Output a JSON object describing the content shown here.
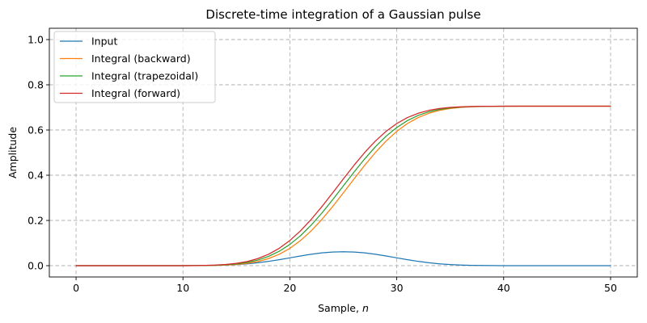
{
  "chart_data": {
    "type": "line",
    "title": "Discrete-time integration of a Gaussian pulse",
    "xlabel_prefix": "Sample, ",
    "xlabel_var": "n",
    "ylabel": "Amplitude",
    "xlim": [
      -2.5,
      52.5
    ],
    "ylim": [
      -0.05,
      1.05
    ],
    "xticks": [
      0,
      10,
      20,
      30,
      40,
      50
    ],
    "xtick_labels": [
      "0",
      "10",
      "20",
      "30",
      "40",
      "50"
    ],
    "yticks": [
      0.0,
      0.2,
      0.4,
      0.6,
      0.8,
      1.0
    ],
    "ytick_labels": [
      "0.0",
      "0.2",
      "0.4",
      "0.6",
      "0.8",
      "1.0"
    ],
    "grid": true,
    "legend_position": "top-left",
    "x": [
      0,
      1,
      2,
      3,
      4,
      5,
      6,
      7,
      8,
      9,
      10,
      11,
      12,
      13,
      14,
      15,
      16,
      17,
      18,
      19,
      20,
      21,
      22,
      23,
      24,
      25,
      26,
      27,
      28,
      29,
      30,
      31,
      32,
      33,
      34,
      35,
      36,
      37,
      38,
      39,
      40,
      41,
      42,
      43,
      44,
      45,
      46,
      47,
      48,
      49,
      50
    ],
    "series": [
      {
        "name": "Input",
        "color": "#1f77b4",
        "values": [
          0.0,
          0.0,
          0.0,
          0.0,
          0.0,
          0.0,
          0.0,
          0.0,
          0.0,
          0.0001,
          0.0001,
          0.0003,
          0.0007,
          0.0014,
          0.0027,
          0.0049,
          0.0082,
          0.0129,
          0.019,
          0.0264,
          0.0346,
          0.0429,
          0.0506,
          0.0566,
          0.0604,
          0.0617,
          0.0604,
          0.0566,
          0.0506,
          0.0429,
          0.0346,
          0.0264,
          0.019,
          0.0129,
          0.0082,
          0.0049,
          0.0027,
          0.0014,
          0.0007,
          0.0003,
          0.0001,
          0.0001,
          0.0,
          0.0,
          0.0,
          0.0,
          0.0,
          0.0,
          0.0,
          0.0,
          0.0
        ]
      },
      {
        "name": "Integral (backward)",
        "color": "#ff7f0e",
        "values": [
          0.0,
          0.0,
          0.0,
          0.0,
          0.0,
          0.0,
          0.0,
          0.0,
          0.0,
          0.0,
          0.0001,
          0.0002,
          0.0005,
          0.0012,
          0.0026,
          0.0053,
          0.0102,
          0.0184,
          0.0313,
          0.0503,
          0.0767,
          0.1113,
          0.1542,
          0.2048,
          0.2614,
          0.3218,
          0.3835,
          0.4439,
          0.5005,
          0.5511,
          0.594,
          0.6286,
          0.655,
          0.674,
          0.6869,
          0.6951,
          0.7,
          0.7027,
          0.7041,
          0.7048,
          0.7051,
          0.7052,
          0.7053,
          0.7053,
          0.7053,
          0.7053,
          0.7053,
          0.7053,
          0.7053,
          0.7053,
          0.7053
        ]
      },
      {
        "name": "Integral (trapezoidal)",
        "color": "#2ca02c",
        "values": [
          0.0,
          0.0,
          0.0,
          0.0,
          0.0,
          0.0,
          0.0,
          0.0,
          0.0,
          0.0001,
          0.0002,
          0.0003,
          0.0008,
          0.0019,
          0.0039,
          0.0077,
          0.0143,
          0.0248,
          0.0408,
          0.0635,
          0.094,
          0.1328,
          0.1795,
          0.2331,
          0.2916,
          0.3527,
          0.4137,
          0.4722,
          0.5258,
          0.5725,
          0.6113,
          0.6418,
          0.6645,
          0.6805,
          0.691,
          0.6976,
          0.7014,
          0.7034,
          0.7045,
          0.705,
          0.7052,
          0.7053,
          0.7053,
          0.7053,
          0.7053,
          0.7053,
          0.7053,
          0.7053,
          0.7053,
          0.7053,
          0.7053
        ]
      },
      {
        "name": "Integral (forward)",
        "color": "#d62728",
        "values": [
          0.0,
          0.0,
          0.0,
          0.0,
          0.0,
          0.0,
          0.0,
          0.0,
          0.0,
          0.0001,
          0.0002,
          0.0005,
          0.0012,
          0.0026,
          0.0053,
          0.0102,
          0.0184,
          0.0313,
          0.0503,
          0.0767,
          0.1113,
          0.1542,
          0.2048,
          0.2614,
          0.3218,
          0.3835,
          0.4439,
          0.5005,
          0.5511,
          0.594,
          0.6286,
          0.655,
          0.674,
          0.6869,
          0.6951,
          0.7,
          0.7027,
          0.7041,
          0.7048,
          0.7051,
          0.7052,
          0.7053,
          0.7053,
          0.7053,
          0.7053,
          0.7053,
          0.7053,
          0.7053,
          0.7053,
          0.7053,
          0.7053
        ]
      }
    ]
  }
}
